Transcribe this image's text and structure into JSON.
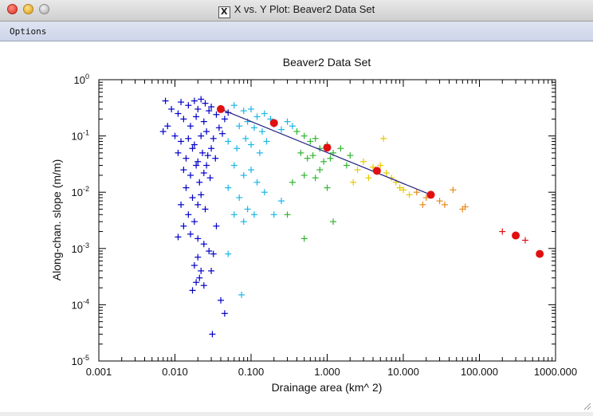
{
  "window": {
    "title": "X vs. Y Plot: Beaver2 Data Set"
  },
  "menu": {
    "options_label": "Options"
  },
  "chart_data": {
    "type": "scatter",
    "title": "Beaver2 Data Set",
    "xlabel": "Drainage area (km^ 2)",
    "ylabel": "Along-chan. slope (m/m)",
    "xscale": "log",
    "yscale": "log",
    "xlim": [
      0.001,
      1000
    ],
    "ylim": [
      1e-05,
      1
    ],
    "x_ticks": [
      {
        "value": 0.001,
        "label": "0.001"
      },
      {
        "value": 0.01,
        "label": "0.010"
      },
      {
        "value": 0.1,
        "label": "0.100"
      },
      {
        "value": 1,
        "label": "1.000"
      },
      {
        "value": 10,
        "label": "10.000"
      },
      {
        "value": 100,
        "label": "100.000"
      },
      {
        "value": 1000,
        "label": "1000.000"
      }
    ],
    "y_ticks": [
      {
        "value": 1,
        "mantissa": "10",
        "exp": "0"
      },
      {
        "value": 0.1,
        "mantissa": "10",
        "exp": "-1"
      },
      {
        "value": 0.01,
        "mantissa": "10",
        "exp": "-2"
      },
      {
        "value": 0.001,
        "mantissa": "10",
        "exp": "-3"
      },
      {
        "value": 0.0001,
        "mantissa": "10",
        "exp": "-4"
      },
      {
        "value": 1e-05,
        "mantissa": "10",
        "exp": "-5"
      }
    ],
    "grid": false,
    "colors": {
      "blue": "#0000c8",
      "cyan": "#1ab6e6",
      "green": "#2fb52f",
      "yellow": "#e6c800",
      "orange": "#e68a1a",
      "red": "#e01010",
      "fit_line": "#202080"
    },
    "points": [
      {
        "x": 0.012,
        "y": 0.4,
        "c": "blue"
      },
      {
        "x": 0.015,
        "y": 0.35,
        "c": "blue"
      },
      {
        "x": 0.018,
        "y": 0.42,
        "c": "blue"
      },
      {
        "x": 0.02,
        "y": 0.3,
        "c": "blue"
      },
      {
        "x": 0.022,
        "y": 0.45,
        "c": "blue"
      },
      {
        "x": 0.025,
        "y": 0.38,
        "c": "blue"
      },
      {
        "x": 0.011,
        "y": 0.25,
        "c": "blue"
      },
      {
        "x": 0.013,
        "y": 0.2,
        "c": "blue"
      },
      {
        "x": 0.016,
        "y": 0.15,
        "c": "blue"
      },
      {
        "x": 0.019,
        "y": 0.22,
        "c": "blue"
      },
      {
        "x": 0.024,
        "y": 0.18,
        "c": "blue"
      },
      {
        "x": 0.028,
        "y": 0.28,
        "c": "blue"
      },
      {
        "x": 0.03,
        "y": 0.33,
        "c": "blue"
      },
      {
        "x": 0.035,
        "y": 0.24,
        "c": "blue"
      },
      {
        "x": 0.04,
        "y": 0.3,
        "c": "blue"
      },
      {
        "x": 0.045,
        "y": 0.2,
        "c": "blue"
      },
      {
        "x": 0.05,
        "y": 0.26,
        "c": "blue"
      },
      {
        "x": 0.009,
        "y": 0.3,
        "c": "blue"
      },
      {
        "x": 0.008,
        "y": 0.15,
        "c": "blue"
      },
      {
        "x": 0.0075,
        "y": 0.42,
        "c": "blue"
      },
      {
        "x": 0.007,
        "y": 0.12,
        "c": "blue"
      },
      {
        "x": 0.01,
        "y": 0.1,
        "c": "blue"
      },
      {
        "x": 0.012,
        "y": 0.08,
        "c": "blue"
      },
      {
        "x": 0.015,
        "y": 0.09,
        "c": "blue"
      },
      {
        "x": 0.018,
        "y": 0.07,
        "c": "blue"
      },
      {
        "x": 0.022,
        "y": 0.1,
        "c": "blue"
      },
      {
        "x": 0.026,
        "y": 0.12,
        "c": "blue"
      },
      {
        "x": 0.032,
        "y": 0.09,
        "c": "blue"
      },
      {
        "x": 0.038,
        "y": 0.14,
        "c": "blue"
      },
      {
        "x": 0.042,
        "y": 0.11,
        "c": "blue"
      },
      {
        "x": 0.011,
        "y": 0.05,
        "c": "blue"
      },
      {
        "x": 0.014,
        "y": 0.04,
        "c": "blue"
      },
      {
        "x": 0.017,
        "y": 0.06,
        "c": "blue"
      },
      {
        "x": 0.02,
        "y": 0.035,
        "c": "blue"
      },
      {
        "x": 0.023,
        "y": 0.05,
        "c": "blue"
      },
      {
        "x": 0.027,
        "y": 0.045,
        "c": "blue"
      },
      {
        "x": 0.03,
        "y": 0.06,
        "c": "blue"
      },
      {
        "x": 0.034,
        "y": 0.04,
        "c": "blue"
      },
      {
        "x": 0.013,
        "y": 0.025,
        "c": "blue"
      },
      {
        "x": 0.016,
        "y": 0.02,
        "c": "blue"
      },
      {
        "x": 0.019,
        "y": 0.03,
        "c": "blue"
      },
      {
        "x": 0.021,
        "y": 0.015,
        "c": "blue"
      },
      {
        "x": 0.024,
        "y": 0.022,
        "c": "blue"
      },
      {
        "x": 0.026,
        "y": 0.03,
        "c": "blue"
      },
      {
        "x": 0.029,
        "y": 0.018,
        "c": "blue"
      },
      {
        "x": 0.014,
        "y": 0.012,
        "c": "blue"
      },
      {
        "x": 0.017,
        "y": 0.008,
        "c": "blue"
      },
      {
        "x": 0.02,
        "y": 0.006,
        "c": "blue"
      },
      {
        "x": 0.022,
        "y": 0.009,
        "c": "blue"
      },
      {
        "x": 0.025,
        "y": 0.005,
        "c": "blue"
      },
      {
        "x": 0.012,
        "y": 0.006,
        "c": "blue"
      },
      {
        "x": 0.015,
        "y": 0.004,
        "c": "blue"
      },
      {
        "x": 0.018,
        "y": 0.003,
        "c": "blue"
      },
      {
        "x": 0.013,
        "y": 0.0025,
        "c": "blue"
      },
      {
        "x": 0.016,
        "y": 0.0018,
        "c": "blue"
      },
      {
        "x": 0.011,
        "y": 0.0016,
        "c": "blue"
      },
      {
        "x": 0.02,
        "y": 0.0015,
        "c": "blue"
      },
      {
        "x": 0.024,
        "y": 0.0012,
        "c": "blue"
      },
      {
        "x": 0.028,
        "y": 0.0009,
        "c": "blue"
      },
      {
        "x": 0.032,
        "y": 0.0008,
        "c": "blue"
      },
      {
        "x": 0.02,
        "y": 0.0007,
        "c": "blue"
      },
      {
        "x": 0.018,
        "y": 0.0005,
        "c": "blue"
      },
      {
        "x": 0.022,
        "y": 0.0004,
        "c": "blue"
      },
      {
        "x": 0.021,
        "y": 0.0003,
        "c": "blue"
      },
      {
        "x": 0.019,
        "y": 0.00025,
        "c": "blue"
      },
      {
        "x": 0.024,
        "y": 0.00022,
        "c": "blue"
      },
      {
        "x": 0.017,
        "y": 0.00018,
        "c": "blue"
      },
      {
        "x": 0.03,
        "y": 0.0004,
        "c": "blue"
      },
      {
        "x": 0.031,
        "y": 3e-05,
        "c": "blue"
      },
      {
        "x": 0.045,
        "y": 7e-05,
        "c": "blue"
      },
      {
        "x": 0.04,
        "y": 0.00012,
        "c": "blue"
      },
      {
        "x": 0.035,
        "y": 0.0025,
        "c": "blue"
      },
      {
        "x": 0.06,
        "y": 0.35,
        "c": "cyan"
      },
      {
        "x": 0.08,
        "y": 0.28,
        "c": "cyan"
      },
      {
        "x": 0.1,
        "y": 0.3,
        "c": "cyan"
      },
      {
        "x": 0.12,
        "y": 0.22,
        "c": "cyan"
      },
      {
        "x": 0.15,
        "y": 0.25,
        "c": "cyan"
      },
      {
        "x": 0.18,
        "y": 0.2,
        "c": "cyan"
      },
      {
        "x": 0.07,
        "y": 0.15,
        "c": "cyan"
      },
      {
        "x": 0.09,
        "y": 0.18,
        "c": "cyan"
      },
      {
        "x": 0.11,
        "y": 0.14,
        "c": "cyan"
      },
      {
        "x": 0.14,
        "y": 0.12,
        "c": "cyan"
      },
      {
        "x": 0.2,
        "y": 0.16,
        "c": "cyan"
      },
      {
        "x": 0.25,
        "y": 0.13,
        "c": "cyan"
      },
      {
        "x": 0.3,
        "y": 0.18,
        "c": "cyan"
      },
      {
        "x": 0.35,
        "y": 0.15,
        "c": "cyan"
      },
      {
        "x": 0.05,
        "y": 0.08,
        "c": "cyan"
      },
      {
        "x": 0.065,
        "y": 0.06,
        "c": "cyan"
      },
      {
        "x": 0.085,
        "y": 0.09,
        "c": "cyan"
      },
      {
        "x": 0.1,
        "y": 0.07,
        "c": "cyan"
      },
      {
        "x": 0.13,
        "y": 0.05,
        "c": "cyan"
      },
      {
        "x": 0.16,
        "y": 0.08,
        "c": "cyan"
      },
      {
        "x": 0.06,
        "y": 0.03,
        "c": "cyan"
      },
      {
        "x": 0.08,
        "y": 0.02,
        "c": "cyan"
      },
      {
        "x": 0.1,
        "y": 0.025,
        "c": "cyan"
      },
      {
        "x": 0.12,
        "y": 0.015,
        "c": "cyan"
      },
      {
        "x": 0.15,
        "y": 0.01,
        "c": "cyan"
      },
      {
        "x": 0.05,
        "y": 0.012,
        "c": "cyan"
      },
      {
        "x": 0.07,
        "y": 0.008,
        "c": "cyan"
      },
      {
        "x": 0.09,
        "y": 0.005,
        "c": "cyan"
      },
      {
        "x": 0.06,
        "y": 0.004,
        "c": "cyan"
      },
      {
        "x": 0.08,
        "y": 0.003,
        "c": "cyan"
      },
      {
        "x": 0.11,
        "y": 0.004,
        "c": "cyan"
      },
      {
        "x": 0.05,
        "y": 0.0008,
        "c": "cyan"
      },
      {
        "x": 0.075,
        "y": 0.00015,
        "c": "cyan"
      },
      {
        "x": 0.2,
        "y": 0.004,
        "c": "cyan"
      },
      {
        "x": 0.25,
        "y": 0.007,
        "c": "cyan"
      },
      {
        "x": 0.4,
        "y": 0.12,
        "c": "green"
      },
      {
        "x": 0.5,
        "y": 0.1,
        "c": "green"
      },
      {
        "x": 0.6,
        "y": 0.08,
        "c": "green"
      },
      {
        "x": 0.7,
        "y": 0.09,
        "c": "green"
      },
      {
        "x": 0.8,
        "y": 0.06,
        "c": "green"
      },
      {
        "x": 1.0,
        "y": 0.07,
        "c": "green"
      },
      {
        "x": 1.2,
        "y": 0.05,
        "c": "green"
      },
      {
        "x": 1.5,
        "y": 0.06,
        "c": "green"
      },
      {
        "x": 0.45,
        "y": 0.05,
        "c": "green"
      },
      {
        "x": 0.55,
        "y": 0.04,
        "c": "green"
      },
      {
        "x": 0.65,
        "y": 0.045,
        "c": "green"
      },
      {
        "x": 0.9,
        "y": 0.035,
        "c": "green"
      },
      {
        "x": 1.1,
        "y": 0.04,
        "c": "green"
      },
      {
        "x": 1.8,
        "y": 0.03,
        "c": "green"
      },
      {
        "x": 2.0,
        "y": 0.045,
        "c": "green"
      },
      {
        "x": 0.5,
        "y": 0.02,
        "c": "green"
      },
      {
        "x": 0.7,
        "y": 0.018,
        "c": "green"
      },
      {
        "x": 0.35,
        "y": 0.015,
        "c": "green"
      },
      {
        "x": 0.3,
        "y": 0.004,
        "c": "green"
      },
      {
        "x": 0.5,
        "y": 0.0015,
        "c": "green"
      },
      {
        "x": 1.2,
        "y": 0.003,
        "c": "green"
      },
      {
        "x": 1.0,
        "y": 0.012,
        "c": "green"
      },
      {
        "x": 0.8,
        "y": 0.025,
        "c": "green"
      },
      {
        "x": 3.0,
        "y": 0.035,
        "c": "yellow"
      },
      {
        "x": 4.0,
        "y": 0.028,
        "c": "yellow"
      },
      {
        "x": 5.0,
        "y": 0.03,
        "c": "yellow"
      },
      {
        "x": 6.0,
        "y": 0.022,
        "c": "yellow"
      },
      {
        "x": 7.0,
        "y": 0.018,
        "c": "yellow"
      },
      {
        "x": 8.0,
        "y": 0.015,
        "c": "yellow"
      },
      {
        "x": 2.5,
        "y": 0.025,
        "c": "yellow"
      },
      {
        "x": 3.5,
        "y": 0.018,
        "c": "yellow"
      },
      {
        "x": 9.0,
        "y": 0.012,
        "c": "yellow"
      },
      {
        "x": 10.0,
        "y": 0.011,
        "c": "yellow"
      },
      {
        "x": 12.0,
        "y": 0.009,
        "c": "yellow"
      },
      {
        "x": 5.5,
        "y": 0.09,
        "c": "yellow"
      },
      {
        "x": 2.2,
        "y": 0.015,
        "c": "yellow"
      },
      {
        "x": 15.0,
        "y": 0.01,
        "c": "orange"
      },
      {
        "x": 20.0,
        "y": 0.008,
        "c": "orange"
      },
      {
        "x": 30.0,
        "y": 0.007,
        "c": "orange"
      },
      {
        "x": 35.0,
        "y": 0.006,
        "c": "orange"
      },
      {
        "x": 45.0,
        "y": 0.011,
        "c": "orange"
      },
      {
        "x": 60.0,
        "y": 0.005,
        "c": "orange"
      },
      {
        "x": 65.0,
        "y": 0.0055,
        "c": "orange"
      },
      {
        "x": 18.0,
        "y": 0.006,
        "c": "orange"
      },
      {
        "x": 200.0,
        "y": 0.002,
        "c": "red"
      },
      {
        "x": 400.0,
        "y": 0.0014,
        "c": "red"
      }
    ],
    "binned_means": [
      {
        "x": 0.04,
        "y": 0.3
      },
      {
        "x": 0.2,
        "y": 0.17
      },
      {
        "x": 1.0,
        "y": 0.062
      },
      {
        "x": 4.5,
        "y": 0.024
      },
      {
        "x": 23.0,
        "y": 0.009
      },
      {
        "x": 300.0,
        "y": 0.0017
      },
      {
        "x": 620.0,
        "y": 0.0008
      }
    ],
    "fit_line": [
      {
        "x": 0.04,
        "y": 0.3
      },
      {
        "x": 23.0,
        "y": 0.009
      }
    ]
  }
}
